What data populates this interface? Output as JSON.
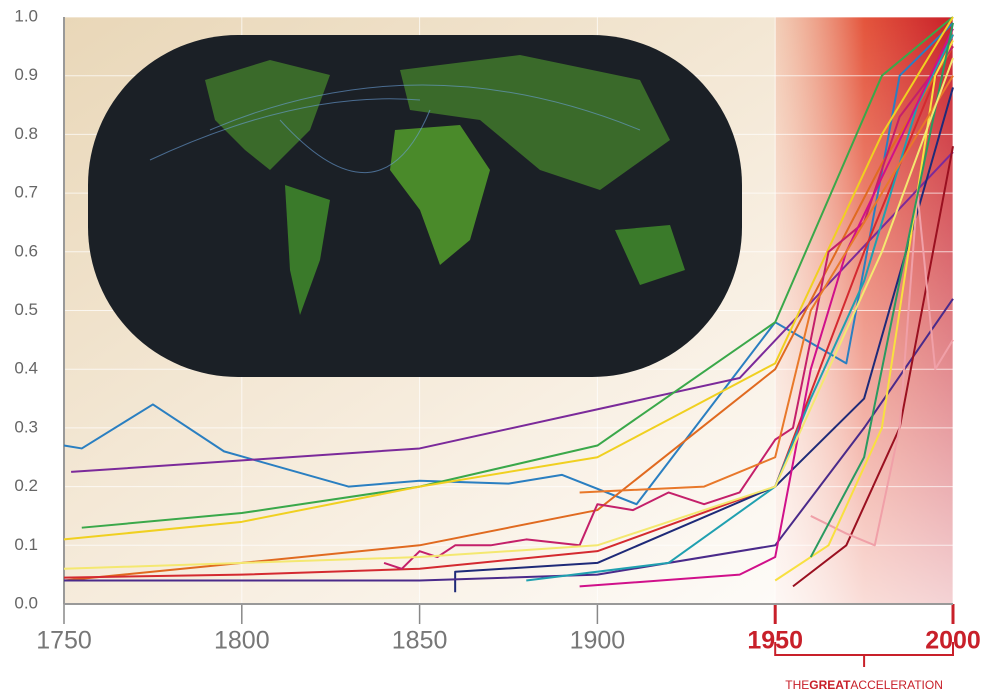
{
  "chart_data": {
    "type": "line",
    "xlim": [
      1750,
      2000
    ],
    "ylim": [
      0,
      1
    ],
    "xticks": [
      1750,
      1800,
      1850,
      1900,
      1950,
      2000
    ],
    "yticks": [
      {
        "value": 0,
        "label": "0.0"
      },
      0.1,
      0.2,
      0.3,
      0.4,
      0.5,
      0.6,
      0.7,
      0.8,
      0.9,
      {
        "value": 1,
        "label": "1.0"
      }
    ],
    "grid": true,
    "highlight": {
      "from": 1950,
      "to": 2000,
      "color": "#c8202a"
    },
    "annotation": [
      "THE",
      "GREAT",
      "ACCELERATION"
    ],
    "series": [
      {
        "color": "#2a7fc1",
        "x": [
          1750,
          1755,
          1775,
          1795,
          1830,
          1850,
          1875,
          1890,
          1911,
          1950,
          1970,
          1985,
          2000
        ],
        "values": [
          0.27,
          0.265,
          0.34,
          0.26,
          0.2,
          0.21,
          0.205,
          0.22,
          0.17,
          0.48,
          0.41,
          0.9,
          0.99
        ]
      },
      {
        "color": "#7b2a9a",
        "x": [
          1752,
          1850,
          1940,
          2000
        ],
        "values": [
          0.225,
          0.265,
          0.385,
          0.77
        ]
      },
      {
        "color": "#3aa84a",
        "x": [
          1755,
          1800,
          1850,
          1900,
          1950,
          1980,
          2000
        ],
        "values": [
          0.13,
          0.155,
          0.2,
          0.27,
          0.48,
          0.9,
          1.0
        ]
      },
      {
        "color": "#f0d020",
        "x": [
          1750,
          1800,
          1850,
          1900,
          1950,
          1980,
          2000
        ],
        "values": [
          0.11,
          0.14,
          0.2,
          0.25,
          0.41,
          0.8,
          1.0
        ]
      },
      {
        "color": "#e06a20",
        "x": [
          1750,
          1800,
          1850,
          1900,
          1950,
          1980,
          2000
        ],
        "values": [
          0.04,
          0.07,
          0.1,
          0.16,
          0.4,
          0.75,
          0.95
        ]
      },
      {
        "color": "#d42a30",
        "x": [
          1750,
          1800,
          1850,
          1900,
          1950,
          1975,
          2000
        ],
        "values": [
          0.045,
          0.05,
          0.06,
          0.09,
          0.2,
          0.6,
          0.97
        ]
      },
      {
        "color": "#c4206a",
        "x": [
          1840,
          1845,
          1850,
          1855,
          1860,
          1870,
          1880,
          1895,
          1900,
          1910,
          1920,
          1930,
          1940,
          1950,
          1955,
          1965,
          1975,
          1985,
          2000
        ],
        "values": [
          0.07,
          0.06,
          0.09,
          0.08,
          0.1,
          0.1,
          0.11,
          0.1,
          0.17,
          0.16,
          0.19,
          0.17,
          0.19,
          0.28,
          0.3,
          0.6,
          0.65,
          0.83,
          0.95
        ]
      },
      {
        "color": "#1e2a78",
        "x": [
          1860,
          1860,
          1900,
          1950,
          1975,
          2000
        ],
        "values": [
          0.02,
          0.055,
          0.07,
          0.2,
          0.35,
          0.88
        ]
      },
      {
        "color": "#4a2a8a",
        "x": [
          1750,
          1850,
          1900,
          1950,
          1975,
          2000
        ],
        "values": [
          0.04,
          0.04,
          0.05,
          0.1,
          0.3,
          0.52
        ]
      },
      {
        "color": "#9a1020",
        "x": [
          1955,
          1970,
          1985,
          2000
        ],
        "values": [
          0.03,
          0.1,
          0.3,
          0.78
        ]
      },
      {
        "color": "#20a0b0",
        "x": [
          1880,
          1920,
          1950,
          1960,
          1975,
          1990,
          2000
        ],
        "values": [
          0.04,
          0.07,
          0.2,
          0.35,
          0.55,
          0.85,
          0.97
        ]
      },
      {
        "color": "#f0a0a8",
        "x": [
          1960,
          1970,
          1978,
          1985,
          1990,
          1995,
          2000
        ],
        "values": [
          0.15,
          0.12,
          0.1,
          0.3,
          0.7,
          0.4,
          0.45
        ]
      },
      {
        "color": "#d0108a",
        "x": [
          1895,
          1940,
          1950,
          1960,
          1970,
          2000
        ],
        "values": [
          0.03,
          0.05,
          0.08,
          0.4,
          0.6,
          0.98
        ]
      },
      {
        "color": "#f8e040",
        "x": [
          1950,
          1965,
          1980,
          1995,
          2000
        ],
        "values": [
          0.04,
          0.1,
          0.3,
          0.9,
          0.96
        ]
      },
      {
        "color": "#2a9a60",
        "x": [
          1960,
          1975,
          1985,
          2000
        ],
        "values": [
          0.08,
          0.25,
          0.55,
          0.99
        ]
      },
      {
        "color": "#e8782a",
        "x": [
          1895,
          1930,
          1950,
          1960,
          2000
        ],
        "values": [
          0.19,
          0.2,
          0.25,
          0.5,
          0.9
        ]
      },
      {
        "color": "#f4e870",
        "x": [
          1750,
          1850,
          1900,
          1950,
          1980,
          2000
        ],
        "values": [
          0.06,
          0.08,
          0.1,
          0.2,
          0.6,
          0.93
        ]
      }
    ]
  }
}
